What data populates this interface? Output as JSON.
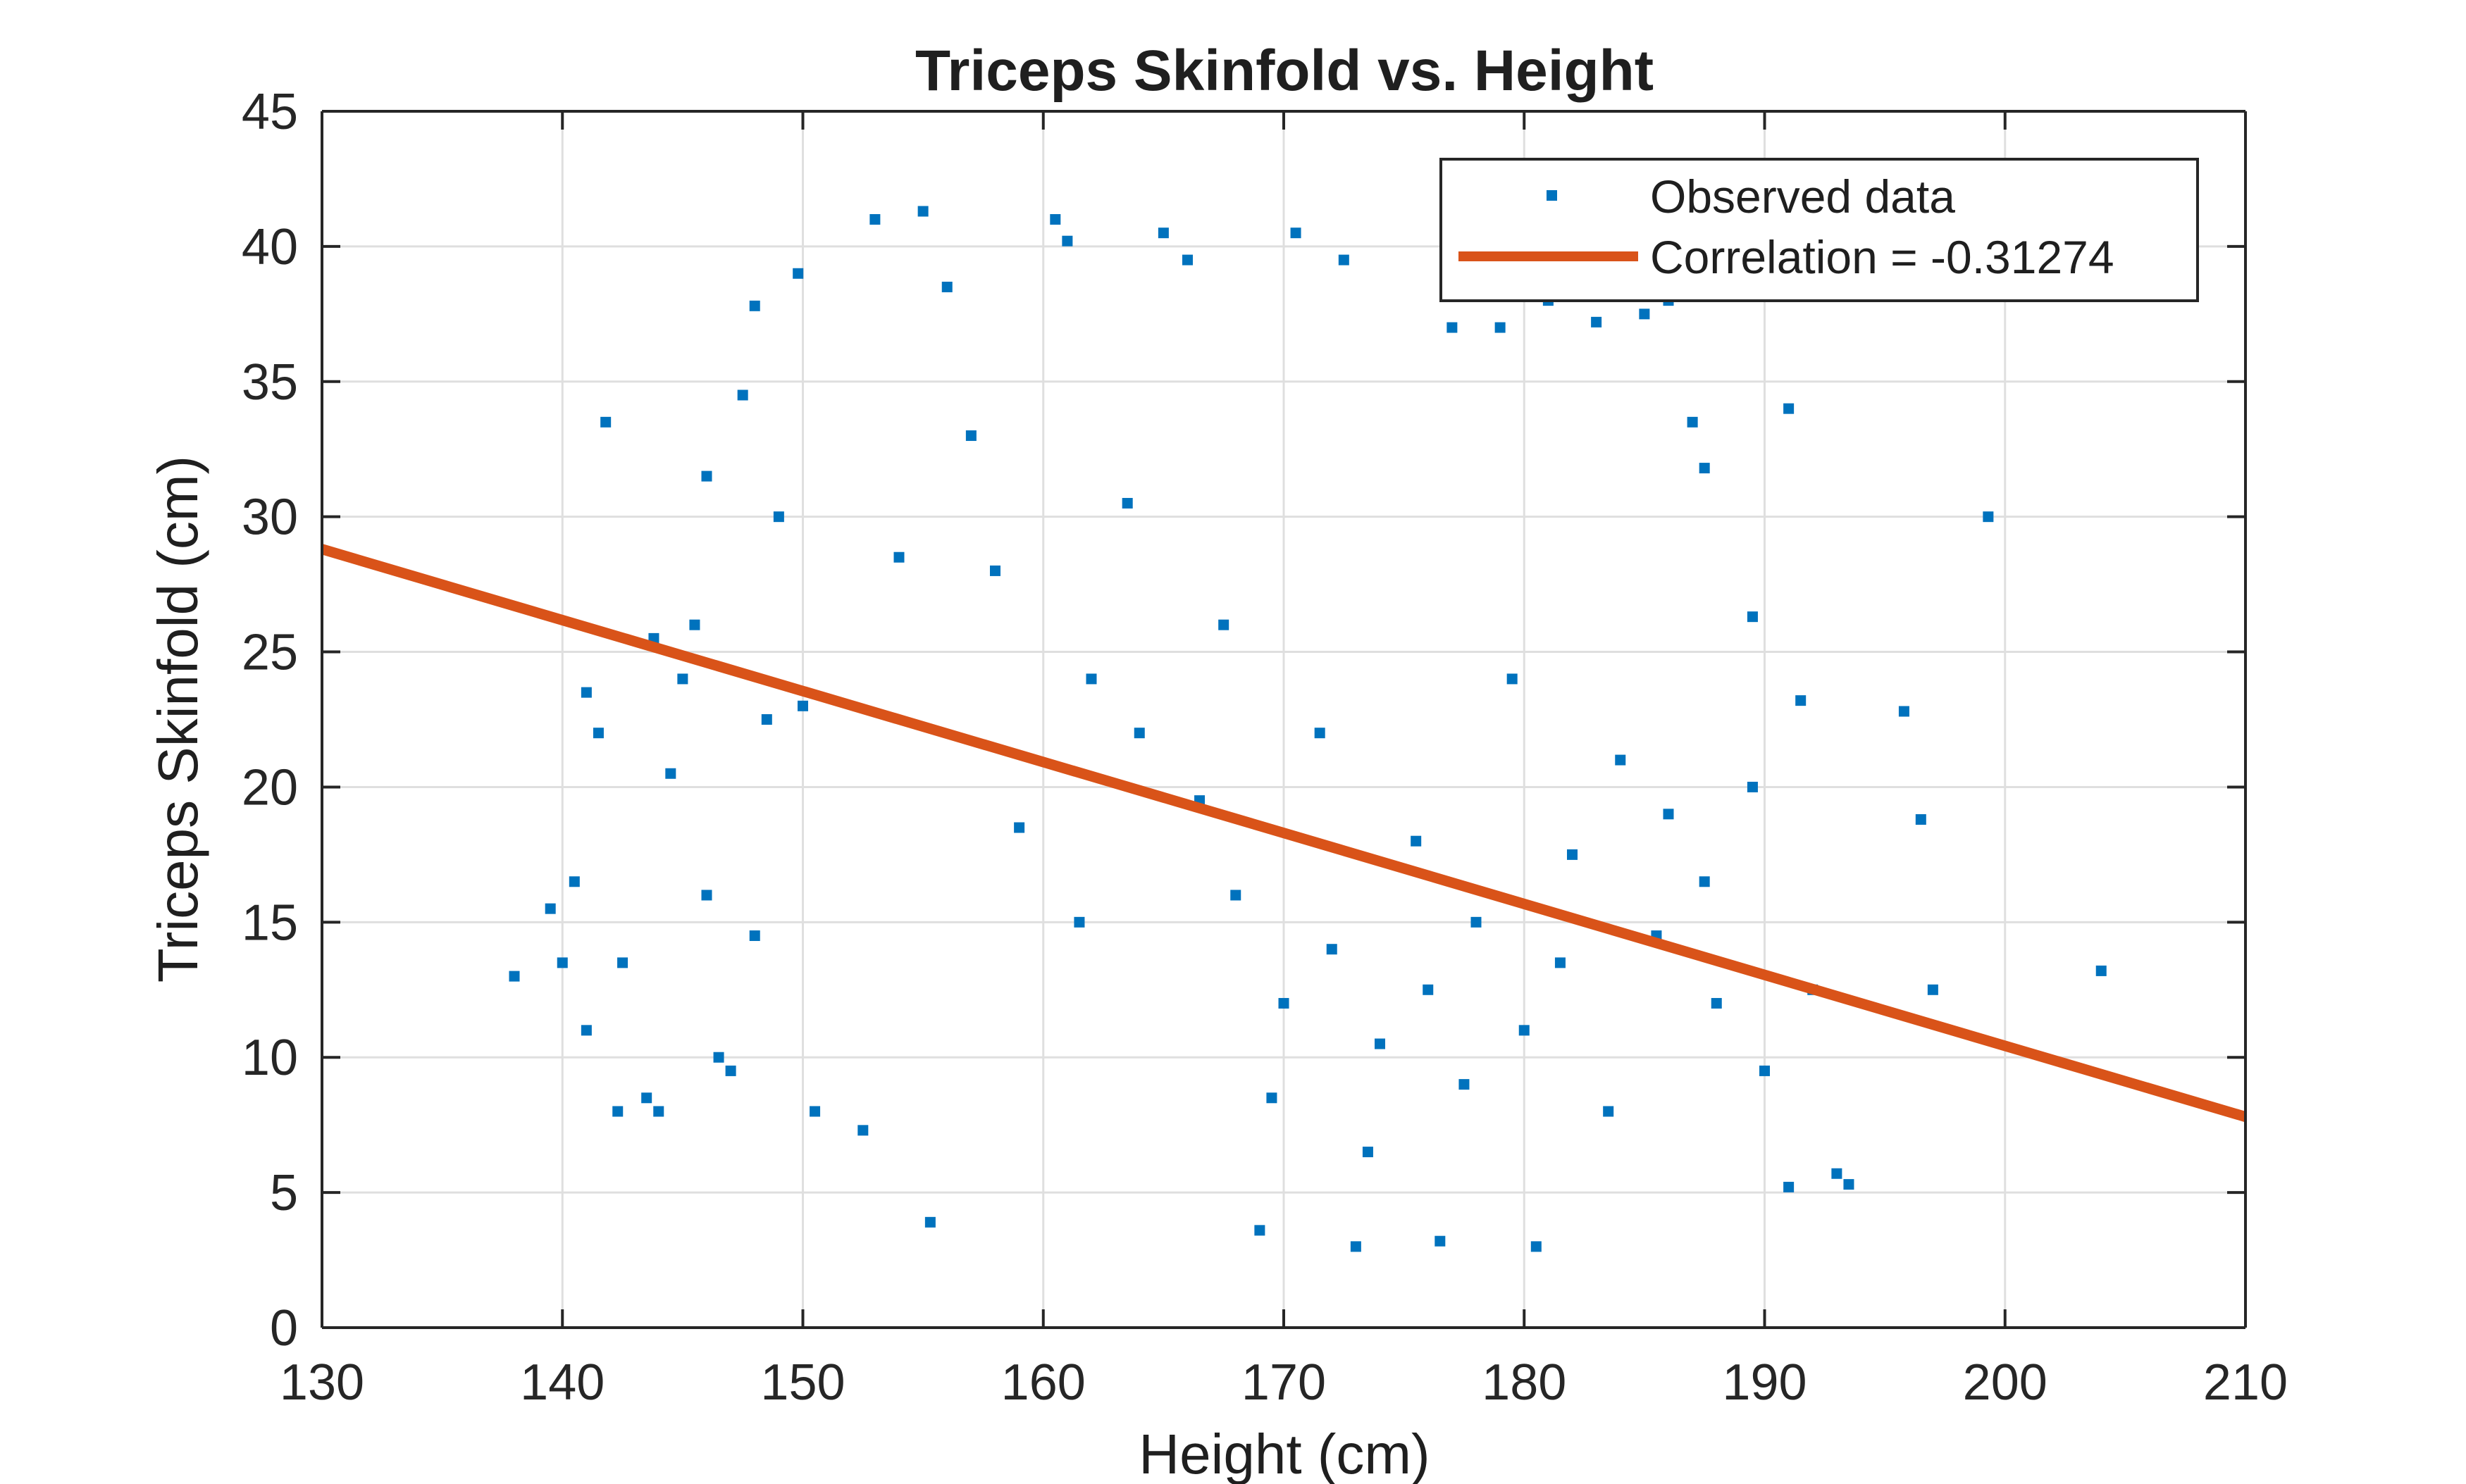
{
  "chart_data": {
    "type": "scatter",
    "title": "Triceps Skinfold vs. Height",
    "xlabel": "Height (cm)",
    "ylabel": "Triceps Skinfold (cm)",
    "xlim": [
      130,
      210
    ],
    "ylim": [
      0,
      45
    ],
    "xticks": [
      130,
      140,
      150,
      160,
      170,
      180,
      190,
      200,
      210
    ],
    "yticks": [
      0,
      5,
      10,
      15,
      20,
      25,
      30,
      35,
      40,
      45
    ],
    "x_tick_labels": [
      "130",
      "140",
      "150",
      "160",
      "170",
      "180",
      "190",
      "200",
      "210"
    ],
    "y_tick_labels": [
      "0",
      "5",
      "10",
      "15",
      "20",
      "25",
      "30",
      "35",
      "40",
      "45"
    ],
    "grid": true,
    "legend_position": "top-right",
    "series": [
      {
        "name": "Observed data",
        "kind": "scatter",
        "marker": "square",
        "color": "#0072BD",
        "points": [
          [
            138.0,
            13.0
          ],
          [
            139.5,
            15.5
          ],
          [
            140.0,
            13.5
          ],
          [
            140.5,
            16.5
          ],
          [
            141.0,
            11.0
          ],
          [
            141.0,
            23.5
          ],
          [
            141.5,
            22.0
          ],
          [
            141.8,
            33.5
          ],
          [
            142.3,
            8.0
          ],
          [
            142.5,
            13.5
          ],
          [
            143.5,
            8.5
          ],
          [
            143.8,
            25.5
          ],
          [
            144.0,
            8.0
          ],
          [
            145.0,
            24.0
          ],
          [
            146.0,
            31.5
          ],
          [
            146.5,
            10.0
          ],
          [
            147.0,
            9.5
          ],
          [
            147.5,
            34.5
          ],
          [
            148.0,
            37.8
          ],
          [
            148.5,
            22.5
          ],
          [
            149.0,
            30.0
          ],
          [
            150.0,
            23.0
          ],
          [
            149.8,
            39.0
          ],
          [
            153.0,
            41.0
          ],
          [
            155.0,
            41.3
          ],
          [
            156.0,
            38.5
          ],
          [
            160.5,
            41.0
          ],
          [
            161.0,
            40.2
          ],
          [
            165.0,
            40.5
          ],
          [
            166.0,
            39.5
          ],
          [
            170.5,
            40.5
          ],
          [
            172.5,
            39.5
          ],
          [
            177.0,
            37.0
          ],
          [
            179.0,
            37.0
          ],
          [
            181.0,
            38.0
          ],
          [
            183.0,
            37.2
          ],
          [
            185.0,
            37.5
          ],
          [
            186.0,
            38.0
          ],
          [
            187.0,
            33.5
          ],
          [
            187.5,
            31.8
          ],
          [
            191.0,
            34.0
          ],
          [
            189.5,
            26.3
          ],
          [
            191.5,
            23.2
          ],
          [
            195.8,
            22.8
          ],
          [
            196.5,
            18.8
          ],
          [
            197.0,
            12.5
          ],
          [
            199.3,
            30.0
          ],
          [
            204.0,
            13.2
          ],
          [
            193.0,
            5.7
          ],
          [
            193.5,
            5.3
          ],
          [
            191.0,
            5.2
          ],
          [
            180.5,
            3.0
          ],
          [
            173.0,
            3.0
          ],
          [
            155.3,
            3.9
          ],
          [
            169.0,
            3.6
          ],
          [
            176.5,
            3.2
          ],
          [
            152.5,
            7.3
          ],
          [
            150.5,
            8.0
          ],
          [
            148.0,
            14.5
          ],
          [
            146.0,
            16.0
          ],
          [
            144.5,
            20.5
          ],
          [
            145.5,
            26.0
          ],
          [
            158.0,
            28.0
          ],
          [
            162.0,
            24.0
          ],
          [
            164.0,
            22.0
          ],
          [
            166.5,
            19.5
          ],
          [
            168.0,
            16.0
          ],
          [
            170.0,
            12.0
          ],
          [
            172.0,
            14.0
          ],
          [
            174.0,
            10.5
          ],
          [
            176.0,
            12.5
          ],
          [
            178.0,
            15.0
          ],
          [
            180.0,
            11.0
          ],
          [
            182.0,
            17.5
          ],
          [
            184.0,
            21.0
          ],
          [
            186.0,
            19.0
          ],
          [
            188.0,
            12.0
          ],
          [
            190.0,
            9.5
          ],
          [
            154.0,
            28.5
          ],
          [
            157.0,
            33.0
          ],
          [
            159.0,
            18.5
          ],
          [
            161.5,
            15.0
          ],
          [
            163.5,
            30.5
          ],
          [
            167.5,
            26.0
          ],
          [
            169.5,
            8.5
          ],
          [
            171.5,
            22.0
          ],
          [
            173.5,
            6.5
          ],
          [
            175.5,
            18.0
          ],
          [
            177.5,
            9.0
          ],
          [
            179.5,
            24.0
          ],
          [
            181.5,
            13.5
          ],
          [
            183.5,
            8.0
          ],
          [
            185.5,
            14.5
          ],
          [
            187.5,
            16.5
          ],
          [
            189.5,
            20.0
          ],
          [
            192.0,
            12.5
          ]
        ]
      },
      {
        "name": "Correlation = -0.31274",
        "kind": "line",
        "color": "#D95319",
        "points": [
          [
            130,
            28.8
          ],
          [
            210,
            7.8
          ]
        ]
      }
    ]
  }
}
